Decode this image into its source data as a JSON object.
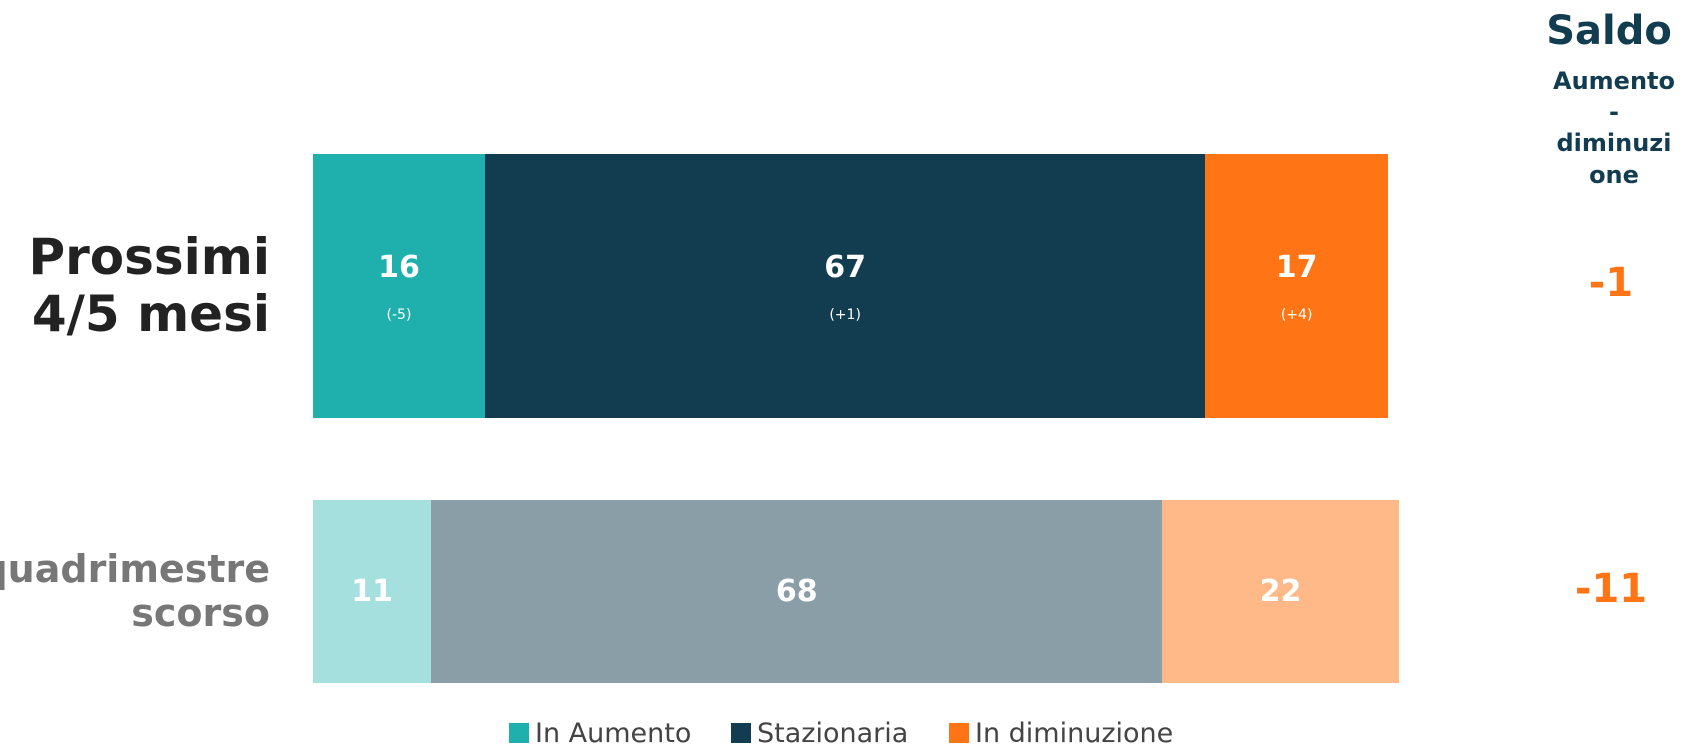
{
  "chart_data": {
    "type": "stacked-bar-horizontal",
    "categories": [
      "Prossimi 4/5 mesi",
      "quadrimestre scorso"
    ],
    "xlim": [
      0,
      100
    ],
    "series": [
      {
        "name": "In Aumento",
        "color": "#1fb0ae",
        "faded_color": "#a6e0de",
        "values": [
          16,
          11
        ],
        "changes": [
          -5,
          null
        ],
        "change_labels": [
          "(-5)",
          null
        ]
      },
      {
        "name": "Stazionaria",
        "color": "#123c4f",
        "faded_color": "#8a9ea7",
        "values": [
          67,
          68
        ],
        "changes": [
          1,
          null
        ],
        "change_labels": [
          "(+1)",
          null
        ]
      },
      {
        "name": "In diminuzione",
        "color": "#ff7414",
        "faded_color": "#ffb888",
        "values": [
          17,
          22
        ],
        "changes": [
          4,
          null
        ],
        "change_labels": [
          "(+4)",
          null
        ]
      }
    ],
    "balance": {
      "title": "Saldo",
      "subtitle": "Aumento-diminuzione",
      "values": [
        -1,
        -11
      ],
      "color": "#ff7414"
    }
  }
}
